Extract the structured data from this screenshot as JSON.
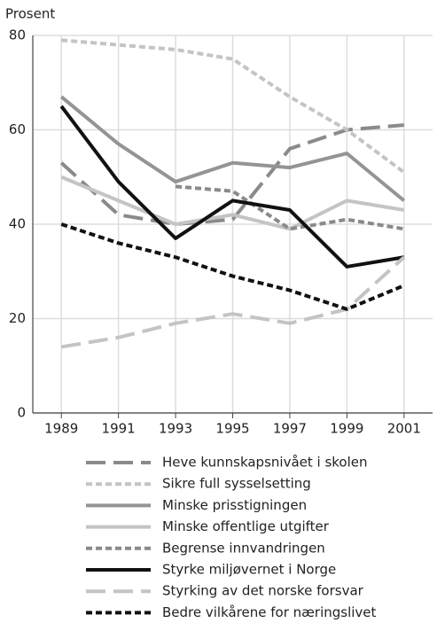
{
  "chart_data": {
    "type": "line",
    "y_label": "Prosent",
    "x": [
      1989,
      1991,
      1993,
      1995,
      1997,
      1999,
      2001
    ],
    "xlim": [
      1988,
      2002
    ],
    "xticks": [
      1989,
      1991,
      1993,
      1995,
      1997,
      1999,
      2001
    ],
    "ylim": [
      0,
      80
    ],
    "yticks": [
      0,
      20,
      40,
      60,
      80
    ],
    "grid": true,
    "series": [
      {
        "name": "Heve kunnskapsnivået i skolen",
        "color": "#8a8a8a",
        "style": "dashed",
        "values": [
          53,
          42,
          40,
          41,
          56,
          60,
          61
        ]
      },
      {
        "name": "Sikre full sysselsetting",
        "color": "#c4c4c4",
        "style": "dotted",
        "values": [
          79,
          78,
          77,
          75,
          67,
          60,
          51
        ]
      },
      {
        "name": "Minske prisstigningen",
        "color": "#949494",
        "style": "solid",
        "values": [
          67,
          57,
          49,
          53,
          52,
          55,
          45
        ]
      },
      {
        "name": "Minske offentlige utgifter",
        "color": "#c4c4c4",
        "style": "solid",
        "values": [
          50,
          45,
          40,
          42,
          39,
          45,
          43
        ]
      },
      {
        "name": "Begrense innvandringen",
        "color": "#8a8a8a",
        "style": "dotted",
        "values": [
          null,
          null,
          48,
          47,
          39,
          41,
          39
        ]
      },
      {
        "name": "Styrke miljøvernet i Norge",
        "color": "#111111",
        "style": "solid",
        "values": [
          65,
          49,
          37,
          45,
          43,
          31,
          33
        ]
      },
      {
        "name": "Styrking av det norske forsvar",
        "color": "#c4c4c4",
        "style": "dashed",
        "values": [
          14,
          16,
          19,
          21,
          19,
          22,
          33
        ]
      },
      {
        "name": "Bedre vilkårene for næringslivet",
        "color": "#111111",
        "style": "dotted",
        "values": [
          40,
          36,
          33,
          29,
          26,
          22,
          27
        ]
      }
    ]
  }
}
